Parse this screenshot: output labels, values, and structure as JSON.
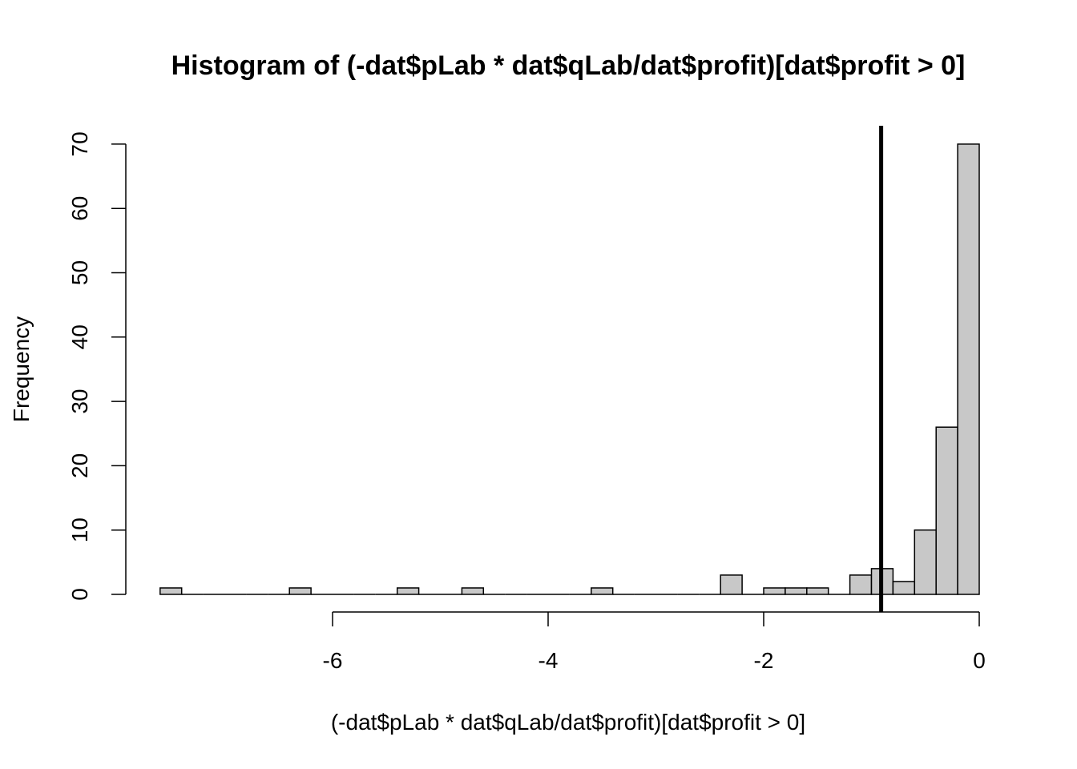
{
  "chart_data": {
    "type": "bar",
    "title": "Histogram of (-dat$pLab * dat$qLab/dat$profit)[dat$profit > 0]",
    "xlabel": "(-dat$pLab * dat$qLab/dat$profit)[dat$profit > 0]",
    "ylabel": "Frequency",
    "xlim": [
      -7.6,
      0
    ],
    "ylim": [
      0,
      70
    ],
    "x_ticks": [
      -6,
      -4,
      -2,
      0
    ],
    "y_ticks": [
      0,
      10,
      20,
      30,
      40,
      50,
      60,
      70
    ],
    "bin_width": 0.2,
    "bins": [
      {
        "start": -7.6,
        "end": -7.4,
        "count": 1
      },
      {
        "start": -7.4,
        "end": -7.2,
        "count": 0
      },
      {
        "start": -7.2,
        "end": -7.0,
        "count": 0
      },
      {
        "start": -7.0,
        "end": -6.8,
        "count": 0
      },
      {
        "start": -6.8,
        "end": -6.6,
        "count": 0
      },
      {
        "start": -6.6,
        "end": -6.4,
        "count": 0
      },
      {
        "start": -6.4,
        "end": -6.2,
        "count": 1
      },
      {
        "start": -6.2,
        "end": -6.0,
        "count": 0
      },
      {
        "start": -6.0,
        "end": -5.8,
        "count": 0
      },
      {
        "start": -5.8,
        "end": -5.6,
        "count": 0
      },
      {
        "start": -5.6,
        "end": -5.4,
        "count": 0
      },
      {
        "start": -5.4,
        "end": -5.2,
        "count": 1
      },
      {
        "start": -5.2,
        "end": -5.0,
        "count": 0
      },
      {
        "start": -5.0,
        "end": -4.8,
        "count": 0
      },
      {
        "start": -4.8,
        "end": -4.6,
        "count": 1
      },
      {
        "start": -4.6,
        "end": -4.4,
        "count": 0
      },
      {
        "start": -4.4,
        "end": -4.2,
        "count": 0
      },
      {
        "start": -4.2,
        "end": -4.0,
        "count": 0
      },
      {
        "start": -4.0,
        "end": -3.8,
        "count": 0
      },
      {
        "start": -3.8,
        "end": -3.6,
        "count": 0
      },
      {
        "start": -3.6,
        "end": -3.4,
        "count": 1
      },
      {
        "start": -3.4,
        "end": -3.2,
        "count": 0
      },
      {
        "start": -3.2,
        "end": -3.0,
        "count": 0
      },
      {
        "start": -3.0,
        "end": -2.8,
        "count": 0
      },
      {
        "start": -2.8,
        "end": -2.6,
        "count": 0
      },
      {
        "start": -2.6,
        "end": -2.4,
        "count": 0
      },
      {
        "start": -2.4,
        "end": -2.2,
        "count": 3
      },
      {
        "start": -2.2,
        "end": -2.0,
        "count": 0
      },
      {
        "start": -2.0,
        "end": -1.8,
        "count": 1
      },
      {
        "start": -1.8,
        "end": -1.6,
        "count": 1
      },
      {
        "start": -1.6,
        "end": -1.4,
        "count": 1
      },
      {
        "start": -1.4,
        "end": -1.2,
        "count": 0
      },
      {
        "start": -1.2,
        "end": -1.0,
        "count": 3
      },
      {
        "start": -1.0,
        "end": -0.8,
        "count": 4
      },
      {
        "start": -0.8,
        "end": -0.6,
        "count": 2
      },
      {
        "start": -0.6,
        "end": -0.4,
        "count": 10
      },
      {
        "start": -0.4,
        "end": -0.2,
        "count": 26
      },
      {
        "start": -0.2,
        "end": 0.0,
        "count": 70
      }
    ],
    "vertical_line_x": -0.91,
    "bar_fill": "#c8c8c8",
    "bar_stroke": "#000000",
    "grid": false,
    "legend": "none"
  }
}
